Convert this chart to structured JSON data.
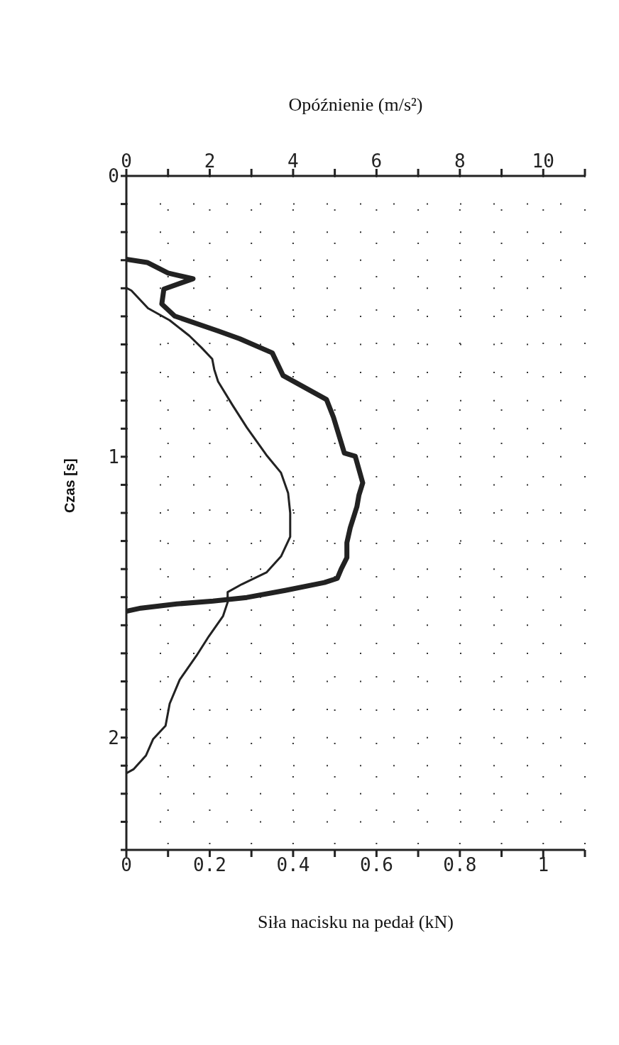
{
  "chart_data": {
    "type": "line",
    "xlabel": "Siła nacisku na pedał (kN)",
    "x2label": "Opóźnienie (m/s²)",
    "ylabel": "Czas [s]",
    "xlim": [
      0,
      1.1
    ],
    "xticks": [
      0,
      {
        "value": 0.1,
        "label": null
      },
      {
        "value": 0.2,
        "label": "0.2"
      },
      {
        "value": 0.3,
        "label": null
      },
      {
        "value": 0.4,
        "label": "0.4"
      },
      {
        "value": 0.5,
        "label": null
      },
      {
        "value": 0.6,
        "label": "0.6"
      },
      {
        "value": 0.7,
        "label": null
      },
      {
        "value": 0.8,
        "label": "0.8"
      },
      {
        "value": 0.9,
        "label": null
      },
      1,
      {
        "value": 1.1,
        "label": null
      }
    ],
    "x2lim": [
      0,
      11
    ],
    "x2ticks": [
      0,
      {
        "value": 1,
        "label": null
      },
      2,
      {
        "value": 3,
        "label": null
      },
      4,
      {
        "value": 5,
        "label": null
      },
      6,
      {
        "value": 7,
        "label": null
      },
      8,
      {
        "value": 9,
        "label": null
      },
      10,
      {
        "value": 11,
        "label": null
      }
    ],
    "ylim": [
      2.4,
      0
    ],
    "yticks": [
      0,
      {
        "value": 0.1,
        "label": null
      },
      {
        "value": 0.2,
        "label": null
      },
      {
        "value": 0.3,
        "label": null
      },
      {
        "value": 0.4,
        "label": null
      },
      {
        "value": 0.5,
        "label": null
      },
      {
        "value": 0.6,
        "label": null
      },
      {
        "value": 0.7,
        "label": null
      },
      {
        "value": 0.8,
        "label": null
      },
      {
        "value": 0.9,
        "label": null
      },
      1,
      {
        "value": 1.1,
        "label": null
      },
      {
        "value": 1.2,
        "label": null
      },
      {
        "value": 1.3,
        "label": null
      },
      {
        "value": 1.4,
        "label": null
      },
      {
        "value": 1.5,
        "label": null
      },
      {
        "value": 1.6,
        "label": null
      },
      {
        "value": 1.7,
        "label": null
      },
      {
        "value": 1.8,
        "label": null
      },
      {
        "value": 1.9,
        "label": null
      },
      2,
      {
        "value": 2.1,
        "label": null
      },
      {
        "value": 2.2,
        "label": null
      },
      {
        "value": 2.3,
        "label": null
      },
      {
        "value": 2.4,
        "label": null
      }
    ],
    "grid": true,
    "marker": "none",
    "line_style": "solid",
    "series": [
      {
        "color": "#222222",
        "x": [
          0,
          0.05,
          0.1,
          0.16,
          0.09,
          0.085,
          0.116,
          0.22,
          0.272,
          0.35,
          0.359,
          0.376,
          0.48,
          0.497,
          0.523,
          0.549,
          0.567,
          0.558,
          0.553,
          0.537,
          0.529,
          0.529,
          0.515,
          0.506,
          0.475,
          0.381,
          0.289,
          0.208,
          0.121,
          0.035,
          0
        ],
        "values": [
          0.297,
          0.308,
          0.346,
          0.366,
          0.403,
          0.456,
          0.499,
          0.552,
          0.58,
          0.63,
          0.658,
          0.711,
          0.796,
          0.86,
          0.987,
          0.998,
          1.093,
          1.136,
          1.178,
          1.253,
          1.306,
          1.359,
          1.401,
          1.433,
          1.448,
          1.476,
          1.501,
          1.514,
          1.524,
          1.539,
          1.55
        ]
      },
      {
        "color": "#222222",
        "axis": "x2",
        "x": [
          0,
          0.12,
          0.52,
          1.04,
          1.51,
          1.8,
          2.06,
          2.11,
          2.2,
          2.55,
          2.89,
          3.36,
          3.71,
          3.88,
          3.93,
          3.93,
          3.71,
          3.36,
          2.77,
          2.43,
          2.43,
          2.32,
          1.98,
          1.68,
          1.28,
          1.04,
          0.94,
          0.64,
          0.47,
          0.17,
          0
        ],
        "values": [
          0.399,
          0.408,
          0.471,
          0.514,
          0.569,
          0.611,
          0.652,
          0.69,
          0.732,
          0.817,
          0.896,
          0.994,
          1.057,
          1.129,
          1.2,
          1.285,
          1.355,
          1.412,
          1.454,
          1.482,
          1.518,
          1.567,
          1.639,
          1.709,
          1.794,
          1.879,
          1.958,
          2.006,
          2.064,
          2.113,
          2.127
        ]
      }
    ]
  }
}
